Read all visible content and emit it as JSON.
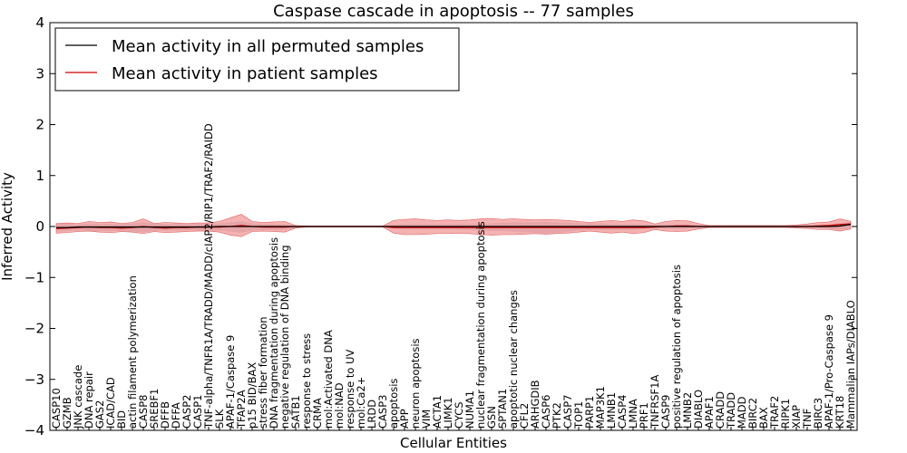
{
  "chart_data": {
    "type": "line",
    "title": "Caspase cascade in apoptosis -- 77 samples",
    "xlabel": "Cellular Entities",
    "ylabel": "Inferred Activity",
    "ylim": [
      -4,
      4
    ],
    "yticks": [
      -4,
      -3,
      -2,
      -1,
      0,
      1,
      2,
      3,
      4
    ],
    "ytick_labels": [
      "−4",
      "−3",
      "−2",
      "−1",
      "0",
      "1",
      "2",
      "3",
      "4"
    ],
    "legend_position": "upper-left",
    "categories": [
      "CASP10",
      "GZMB",
      "JNK cascade",
      "DNA repair",
      "GAS2",
      "ICAD/CAD",
      "BID",
      "actin filament polymerization",
      "CASP8",
      "SREBF1",
      "DFFB",
      "DFFA",
      "CASP2",
      "CASP1",
      "TNF-alpha/TNFR1A/TRADD/MADD/cIAP2/RIP1/TRAF2/RAIDD",
      "SLK",
      "APAF-1/Caspase 9",
      "TFAP2A",
      "p15 BID/BAX",
      "stress fiber formation",
      "DNA fragmentation during apoptosis",
      "negative regulation of DNA binding",
      "SATB1",
      "response to stress",
      "CRMA",
      "mol:Activated DNA",
      "mol:NAD",
      "response to UV",
      "mol:Ca2+",
      "LRDD",
      "CASP3",
      "apoptosis",
      "APP",
      "neuron apoptosis",
      "VIM",
      "ACTA1",
      "LIMK1",
      "CYCS",
      "NUMA1",
      "nuclear fragmentation during apoptosis",
      "GSN",
      "SPTAN1",
      "apoptotic nuclear changes",
      "CFL2",
      "ARHGDIB",
      "CASP6",
      "PTK2",
      "CASP7",
      "TOP1",
      "PARP1",
      "MAP3K1",
      "LMNB1",
      "CASP4",
      "LMNA",
      "PRF1",
      "TNFRSF1A",
      "CASP9",
      "positive regulation of apoptosis",
      "LMNB2",
      "DIABLO",
      "APAF1",
      "CRADD",
      "TRADD",
      "MADD",
      "BIRC2",
      "BAX",
      "TRAF2",
      "RIPK1",
      "XIAP",
      "TNF",
      "BIRC3",
      "APAF-1/Pro-Caspase 9",
      "KRT18",
      "Mammalian IAPs/DIABLO"
    ],
    "series": [
      {
        "name": "Mean activity in all permuted samples",
        "color": "#000000",
        "band_color": "#c8c8d2",
        "values": [
          -0.02,
          -0.02,
          -0.01,
          -0.01,
          -0.01,
          -0.01,
          -0.01,
          -0.01,
          -0.01,
          -0.01,
          -0.01,
          -0.01,
          -0.01,
          -0.01,
          -0.01,
          0,
          0,
          0,
          0,
          0,
          0,
          0,
          0,
          0,
          0,
          0,
          0,
          0,
          0,
          0,
          0,
          0,
          0,
          0,
          0,
          0,
          0,
          0,
          0,
          0,
          0,
          0,
          0,
          0,
          0,
          0,
          0,
          0,
          0,
          0,
          0,
          0,
          0,
          0,
          0,
          0,
          0,
          0,
          0,
          0,
          0,
          0,
          0,
          0,
          0,
          0,
          0,
          0,
          0,
          0,
          0,
          0,
          0.01,
          0.04
        ],
        "band_upper": [
          0.06,
          0.05,
          0.04,
          0.06,
          0.05,
          0.05,
          0.05,
          0.06,
          0.08,
          0.06,
          0.05,
          0.05,
          0.05,
          0.05,
          0.05,
          0.06,
          0.08,
          0.1,
          0.06,
          0.05,
          0.05,
          0.04,
          0.02,
          0.01,
          0.01,
          0.01,
          0.01,
          0.01,
          0.01,
          0.01,
          0.01,
          0.04,
          0.05,
          0.05,
          0.05,
          0.05,
          0.05,
          0.05,
          0.05,
          0.05,
          0.06,
          0.07,
          0.08,
          0.08,
          0.08,
          0.09,
          0.08,
          0.07,
          0.06,
          0.06,
          0.06,
          0.05,
          0.05,
          0.05,
          0.04,
          0.03,
          0.04,
          0.04,
          0.04,
          0.03,
          0.02,
          0.02,
          0.02,
          0.02,
          0.02,
          0.02,
          0.02,
          0.02,
          0.02,
          0.03,
          0.03,
          0.04,
          0.06,
          0.08
        ],
        "band_lower": [
          -0.1,
          -0.09,
          -0.08,
          -0.09,
          -0.09,
          -0.09,
          -0.09,
          -0.1,
          -0.11,
          -0.09,
          -0.08,
          -0.08,
          -0.08,
          -0.08,
          -0.08,
          -0.08,
          -0.1,
          -0.12,
          -0.08,
          -0.07,
          -0.07,
          -0.06,
          -0.03,
          -0.01,
          -0.01,
          -0.01,
          -0.01,
          -0.01,
          -0.01,
          -0.01,
          -0.01,
          -0.04,
          -0.06,
          -0.06,
          -0.06,
          -0.06,
          -0.06,
          -0.06,
          -0.07,
          -0.07,
          -0.09,
          -0.09,
          -0.1,
          -0.11,
          -0.12,
          -0.14,
          -0.12,
          -0.1,
          -0.08,
          -0.07,
          -0.07,
          -0.07,
          -0.07,
          -0.07,
          -0.05,
          -0.04,
          -0.05,
          -0.05,
          -0.04,
          -0.03,
          -0.03,
          -0.02,
          -0.02,
          -0.02,
          -0.02,
          -0.02,
          -0.02,
          -0.02,
          -0.02,
          -0.03,
          -0.03,
          -0.05,
          -0.06,
          -0.05
        ]
      },
      {
        "name": "Mean activity in patient samples",
        "color": "#cc0000",
        "band_color": "#ee8888",
        "values": [
          -0.04,
          -0.03,
          -0.02,
          -0.01,
          -0.02,
          -0.02,
          -0.03,
          -0.02,
          0,
          -0.02,
          -0.03,
          -0.02,
          -0.02,
          -0.01,
          -0.01,
          -0.01,
          0,
          0.02,
          0,
          -0.01,
          -0.01,
          -0.01,
          0,
          0,
          0,
          0,
          0,
          0,
          0,
          0,
          0,
          -0.02,
          -0.02,
          -0.02,
          -0.02,
          -0.02,
          -0.02,
          -0.02,
          -0.02,
          -0.02,
          -0.02,
          -0.02,
          -0.02,
          -0.02,
          -0.02,
          -0.02,
          -0.02,
          -0.02,
          -0.02,
          -0.02,
          -0.02,
          -0.02,
          -0.02,
          -0.02,
          -0.02,
          -0.01,
          0,
          0.01,
          0.01,
          0,
          0,
          0,
          0,
          0,
          0,
          0,
          0,
          0,
          0,
          0,
          0.01,
          0.02,
          0.04,
          0.05
        ],
        "band_upper": [
          0.06,
          0.07,
          0.06,
          0.1,
          0.08,
          0.09,
          0.06,
          0.08,
          0.15,
          0.06,
          0.08,
          0.07,
          0.06,
          0.07,
          0.07,
          0.1,
          0.17,
          0.24,
          0.1,
          0.08,
          0.09,
          0.1,
          0.02,
          0.01,
          0.01,
          0.01,
          0.01,
          0.01,
          0.01,
          0.01,
          0.01,
          0.12,
          0.14,
          0.15,
          0.13,
          0.12,
          0.13,
          0.12,
          0.13,
          0.15,
          0.16,
          0.14,
          0.15,
          0.14,
          0.13,
          0.14,
          0.13,
          0.12,
          0.1,
          0.08,
          0.1,
          0.12,
          0.1,
          0.13,
          0.11,
          0.05,
          0.1,
          0.12,
          0.11,
          0.06,
          0.02,
          0.02,
          0.02,
          0.02,
          0.02,
          0.02,
          0.02,
          0.02,
          0.03,
          0.05,
          0.08,
          0.09,
          0.15,
          0.1
        ],
        "band_lower": [
          -0.13,
          -0.12,
          -0.1,
          -0.09,
          -0.11,
          -0.12,
          -0.1,
          -0.11,
          -0.14,
          -0.1,
          -0.12,
          -0.11,
          -0.1,
          -0.09,
          -0.09,
          -0.11,
          -0.17,
          -0.2,
          -0.1,
          -0.09,
          -0.1,
          -0.11,
          -0.03,
          -0.01,
          -0.01,
          -0.01,
          -0.01,
          -0.01,
          -0.01,
          -0.01,
          -0.01,
          -0.13,
          -0.16,
          -0.16,
          -0.15,
          -0.14,
          -0.14,
          -0.13,
          -0.14,
          -0.16,
          -0.17,
          -0.16,
          -0.16,
          -0.15,
          -0.14,
          -0.15,
          -0.14,
          -0.13,
          -0.11,
          -0.09,
          -0.11,
          -0.13,
          -0.11,
          -0.14,
          -0.12,
          -0.06,
          -0.09,
          -0.1,
          -0.09,
          -0.05,
          -0.02,
          -0.02,
          -0.02,
          -0.02,
          -0.02,
          -0.02,
          -0.02,
          -0.02,
          -0.03,
          -0.04,
          -0.06,
          -0.06,
          -0.09,
          -0.05
        ]
      }
    ]
  }
}
